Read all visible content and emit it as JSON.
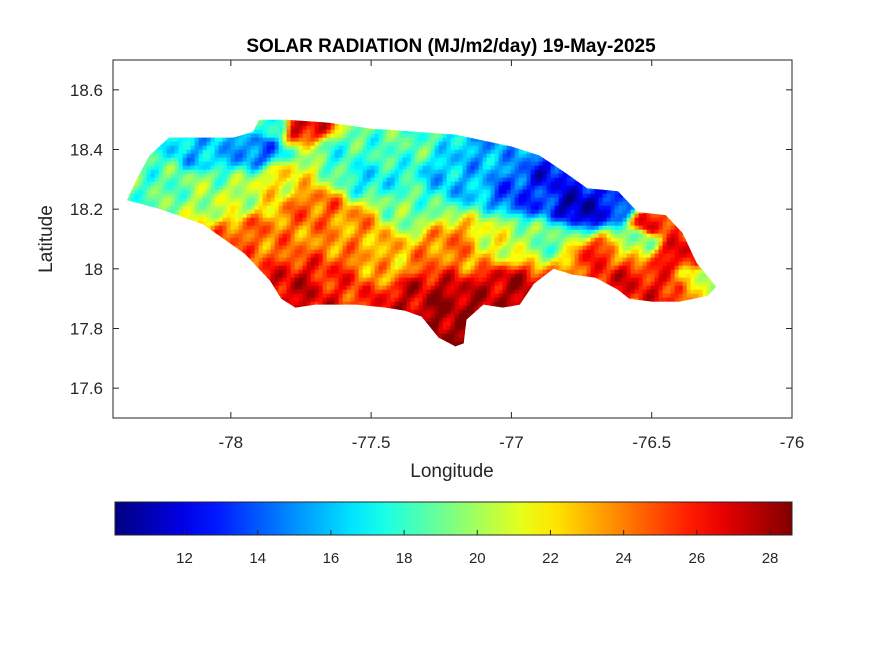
{
  "chart_data": {
    "type": "heatmap",
    "title": "SOLAR RADIATION (MJ/m2/day) 19-May-2025",
    "xlabel": "Longitude",
    "ylabel": "Latitude",
    "xlim": [
      -78.42,
      -76.0
    ],
    "ylim": [
      17.5,
      18.7
    ],
    "xticks": [
      -78,
      -77.5,
      -77,
      -76.5,
      -76
    ],
    "yticks": [
      17.6,
      17.8,
      18,
      18.2,
      18.4,
      18.6
    ],
    "colormap": "jet",
    "colorbar": {
      "orientation": "horizontal",
      "location": "bottom",
      "range": [
        10.1,
        28.6
      ],
      "ticks": [
        12,
        14,
        16,
        18,
        20,
        22,
        24,
        26,
        28
      ]
    },
    "outline_lonlat": [
      [
        -78.35,
        18.27
      ],
      [
        -78.33,
        18.31
      ],
      [
        -78.29,
        18.38
      ],
      [
        -78.22,
        18.44
      ],
      [
        -78.1,
        18.44
      ],
      [
        -77.99,
        18.44
      ],
      [
        -77.92,
        18.46
      ],
      [
        -77.9,
        18.5
      ],
      [
        -77.8,
        18.5
      ],
      [
        -77.65,
        18.49
      ],
      [
        -77.5,
        18.47
      ],
      [
        -77.35,
        18.46
      ],
      [
        -77.2,
        18.45
      ],
      [
        -77.0,
        18.41
      ],
      [
        -76.9,
        18.38
      ],
      [
        -76.82,
        18.33
      ],
      [
        -76.73,
        18.27
      ],
      [
        -76.62,
        18.26
      ],
      [
        -76.55,
        18.19
      ],
      [
        -76.45,
        18.18
      ],
      [
        -76.39,
        18.12
      ],
      [
        -76.34,
        18.02
      ],
      [
        -76.27,
        17.94
      ],
      [
        -76.3,
        17.91
      ],
      [
        -76.4,
        17.89
      ],
      [
        -76.5,
        17.89
      ],
      [
        -76.58,
        17.9
      ],
      [
        -76.62,
        17.93
      ],
      [
        -76.7,
        17.97
      ],
      [
        -76.78,
        17.98
      ],
      [
        -76.85,
        18.0
      ],
      [
        -76.92,
        17.95
      ],
      [
        -76.97,
        17.88
      ],
      [
        -77.03,
        17.87
      ],
      [
        -77.1,
        17.88
      ],
      [
        -77.16,
        17.83
      ],
      [
        -77.17,
        17.75
      ],
      [
        -77.2,
        17.74
      ],
      [
        -77.26,
        17.77
      ],
      [
        -77.32,
        17.84
      ],
      [
        -77.38,
        17.86
      ],
      [
        -77.45,
        17.87
      ],
      [
        -77.55,
        17.88
      ],
      [
        -77.7,
        17.88
      ],
      [
        -77.77,
        17.87
      ],
      [
        -77.82,
        17.9
      ],
      [
        -77.86,
        17.96
      ],
      [
        -77.95,
        18.05
      ],
      [
        -78.1,
        18.15
      ],
      [
        -78.25,
        18.2
      ],
      [
        -78.37,
        18.23
      ]
    ],
    "field_anchors": [
      {
        "lon": -78.25,
        "lat": 18.3,
        "value": 18.5
      },
      {
        "lon": -78.1,
        "lat": 18.38,
        "value": 16.0
      },
      {
        "lon": -78.1,
        "lat": 18.28,
        "value": 19.5
      },
      {
        "lon": -78.0,
        "lat": 18.22,
        "value": 20.5
      },
      {
        "lon": -77.95,
        "lat": 18.12,
        "value": 24.5
      },
      {
        "lon": -77.9,
        "lat": 18.4,
        "value": 14.5
      },
      {
        "lon": -77.85,
        "lat": 18.48,
        "value": 17.5
      },
      {
        "lon": -77.8,
        "lat": 18.3,
        "value": 22.0
      },
      {
        "lon": -77.75,
        "lat": 18.48,
        "value": 27.0
      },
      {
        "lon": -77.7,
        "lat": 18.2,
        "value": 24.5
      },
      {
        "lon": -77.75,
        "lat": 17.92,
        "value": 27.0
      },
      {
        "lon": -77.6,
        "lat": 17.95,
        "value": 25.5
      },
      {
        "lon": -77.6,
        "lat": 18.38,
        "value": 18.0
      },
      {
        "lon": -77.55,
        "lat": 18.15,
        "value": 23.5
      },
      {
        "lon": -77.5,
        "lat": 18.3,
        "value": 17.0
      },
      {
        "lon": -77.45,
        "lat": 18.0,
        "value": 23.0
      },
      {
        "lon": -77.4,
        "lat": 18.42,
        "value": 18.5
      },
      {
        "lon": -77.38,
        "lat": 18.2,
        "value": 19.0
      },
      {
        "lon": -77.35,
        "lat": 17.92,
        "value": 27.0
      },
      {
        "lon": -77.25,
        "lat": 17.88,
        "value": 28.0
      },
      {
        "lon": -77.2,
        "lat": 17.78,
        "value": 28.2
      },
      {
        "lon": -77.2,
        "lat": 18.08,
        "value": 24.0
      },
      {
        "lon": -77.2,
        "lat": 18.3,
        "value": 16.0
      },
      {
        "lon": -77.05,
        "lat": 18.38,
        "value": 15.5
      },
      {
        "lon": -77.05,
        "lat": 18.1,
        "value": 21.0
      },
      {
        "lon": -77.0,
        "lat": 17.93,
        "value": 27.5
      },
      {
        "lon": -76.95,
        "lat": 18.25,
        "value": 13.5
      },
      {
        "lon": -76.85,
        "lat": 18.3,
        "value": 12.5
      },
      {
        "lon": -76.85,
        "lat": 18.1,
        "value": 19.0
      },
      {
        "lon": -76.75,
        "lat": 18.2,
        "value": 11.0
      },
      {
        "lon": -76.7,
        "lat": 18.05,
        "value": 25.5
      },
      {
        "lon": -76.65,
        "lat": 18.2,
        "value": 13.0
      },
      {
        "lon": -76.6,
        "lat": 17.95,
        "value": 26.5
      },
      {
        "lon": -76.55,
        "lat": 18.1,
        "value": 19.5
      },
      {
        "lon": -76.5,
        "lat": 18.15,
        "value": 26.0
      },
      {
        "lon": -76.45,
        "lat": 17.93,
        "value": 26.0
      },
      {
        "lon": -76.4,
        "lat": 18.05,
        "value": 26.5
      },
      {
        "lon": -76.33,
        "lat": 17.96,
        "value": 21.0
      }
    ]
  }
}
